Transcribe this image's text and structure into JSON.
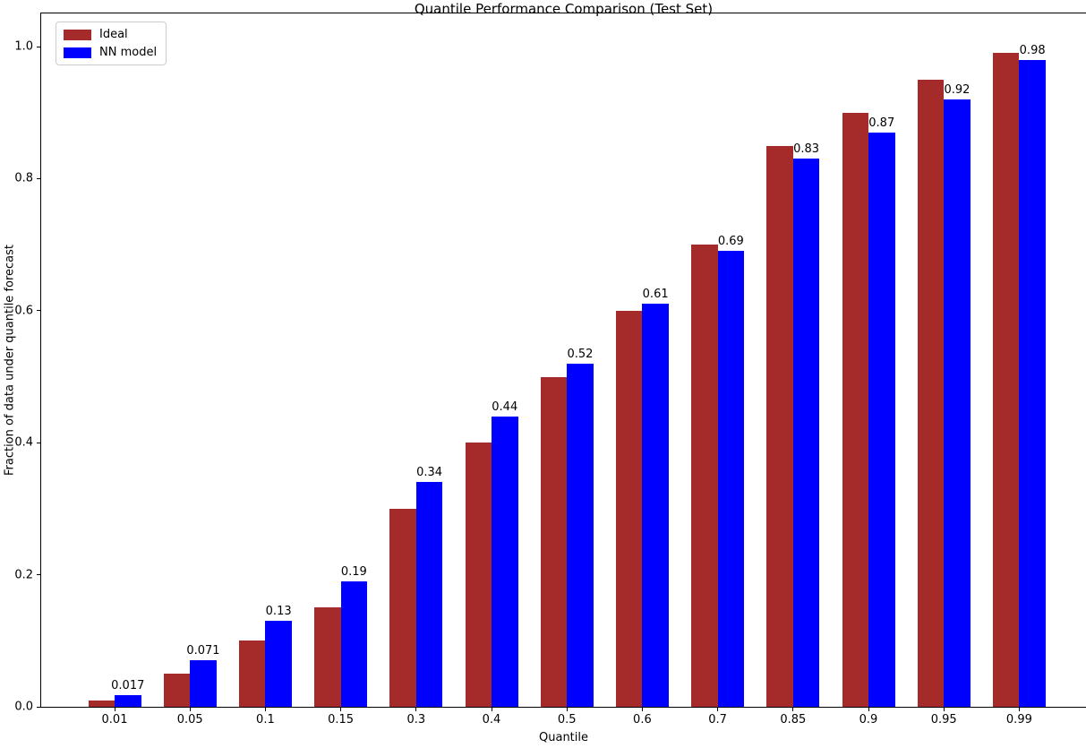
{
  "figure": {
    "background": "#ffffff"
  },
  "chart_data": {
    "type": "bar",
    "title": "Quantile Performance Comparison (Test Set)",
    "xlabel": "Quantile",
    "ylabel": "Fraction of data under quantile forecast",
    "categories": [
      "0.01",
      "0.05",
      "0.1",
      "0.15",
      "0.3",
      "0.4",
      "0.5",
      "0.6",
      "0.7",
      "0.85",
      "0.9",
      "0.95",
      "0.99"
    ],
    "series": [
      {
        "name": "Ideal",
        "color": "#A52A2A",
        "values": [
          0.01,
          0.05,
          0.1,
          0.15,
          0.3,
          0.4,
          0.5,
          0.6,
          0.7,
          0.85,
          0.9,
          0.95,
          0.99
        ]
      },
      {
        "name": "NN model",
        "color": "#0000FF",
        "values": [
          0.017,
          0.071,
          0.13,
          0.19,
          0.34,
          0.44,
          0.52,
          0.61,
          0.69,
          0.83,
          0.87,
          0.92,
          0.98
        ]
      }
    ],
    "bar_value_labels": [
      "0.017",
      "0.071",
      "0.13",
      "0.19",
      "0.34",
      "0.44",
      "0.52",
      "0.61",
      "0.69",
      "0.83",
      "0.87",
      "0.92",
      "0.98"
    ],
    "ytick_values": [
      0.0,
      0.2,
      0.4,
      0.6,
      0.8,
      1.0
    ],
    "ytick_labels": [
      "0.0",
      "0.2",
      "0.4",
      "0.6",
      "0.8",
      "1.0"
    ],
    "ylim": [
      0,
      1.05
    ],
    "grid": false,
    "legend": {
      "position": "upper left",
      "entries": [
        {
          "label": "Ideal",
          "color": "#A52A2A"
        },
        {
          "label": "NN model",
          "color": "#0000FF"
        }
      ]
    },
    "axis_color": "#000000",
    "text_color": "#000000"
  }
}
